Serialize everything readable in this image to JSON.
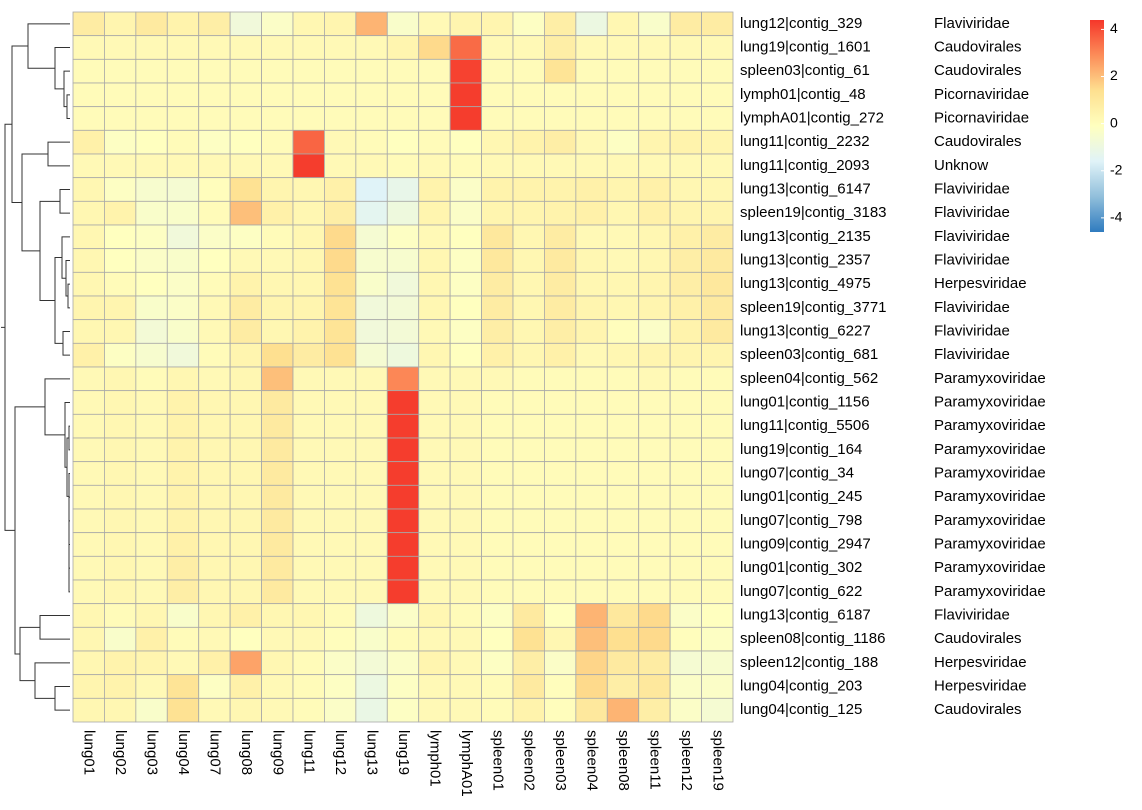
{
  "chart_data": {
    "type": "heatmap",
    "categories": [
      "lung01",
      "lung02",
      "lung03",
      "lung04",
      "lung07",
      "lung08",
      "lung09",
      "lung11",
      "lung12",
      "lung13",
      "lung19",
      "lymph01",
      "lymphA01",
      "spleen01",
      "spleen02",
      "spleen03",
      "spleen04",
      "spleen08",
      "spleen11",
      "spleen12",
      "spleen19"
    ],
    "rows": [
      "lung12|contig_329",
      "lung19|contig_1601",
      "spleen03|contig_61",
      "lymph01|contig_48",
      "lymphA01|contig_272",
      "lung11|contig_2232",
      "lung11|contig_2093",
      "lung13|contig_6147",
      "spleen19|contig_3183",
      "lung13|contig_2135",
      "lung13|contig_2357",
      "lung13|contig_4975",
      "spleen19|contig_3771",
      "lung13|contig_6227",
      "spleen03|contig_681",
      "spleen04|contig_562",
      "lung01|contig_1156",
      "lung11|contig_5506",
      "lung19|contig_164",
      "lung07|contig_34",
      "lung01|contig_245",
      "lung07|contig_798",
      "lung09|contig_2947",
      "lung01|contig_302",
      "lung07|contig_622",
      "lung13|contig_6187",
      "spleen08|contig_1186",
      "spleen12|contig_188",
      "lung04|contig_203",
      "lung04|contig_125"
    ],
    "row_annotations": [
      "Flaviviridae",
      "Caudovirales",
      "Caudovirales",
      "Picornaviridae",
      "Picornaviridae",
      "Caudovirales",
      "Unknow",
      "Flaviviridae",
      "Flaviviridae",
      "Flaviviridae",
      "Flaviviridae",
      "Herpesviridae",
      "Flaviviridae",
      "Flaviviridae",
      "Flaviviridae",
      "Paramyxoviridae",
      "Paramyxoviridae",
      "Paramyxoviridae",
      "Paramyxoviridae",
      "Paramyxoviridae",
      "Paramyxoviridae",
      "Paramyxoviridae",
      "Paramyxoviridae",
      "Paramyxoviridae",
      "Paramyxoviridae",
      "Flaviviridae",
      "Caudovirales",
      "Herpesviridae",
      "Herpesviridae",
      "Caudovirales"
    ],
    "values": [
      [
        0.8,
        0.4,
        0.9,
        0.5,
        0.7,
        -0.8,
        -0.3,
        0.3,
        0.4,
        2.2,
        -0.4,
        0.2,
        0.4,
        0.4,
        -0.2,
        0.7,
        -1.0,
        0.3,
        -0.4,
        0.8,
        0.8
      ],
      [
        0.2,
        0.2,
        0.2,
        0.2,
        0.2,
        0.2,
        0.2,
        0.2,
        0.2,
        0.2,
        0.4,
        1.5,
        3.5,
        0.2,
        0.2,
        0.7,
        0.2,
        0.2,
        0.2,
        0.2,
        0.2
      ],
      [
        0.1,
        0.1,
        0.1,
        0.1,
        0.1,
        0.1,
        0.1,
        0.1,
        0.1,
        0.1,
        0.1,
        0.1,
        4.2,
        0.1,
        0.1,
        1.2,
        0.1,
        0.1,
        0.1,
        0.1,
        0.1
      ],
      [
        0.1,
        0.1,
        0.1,
        0.1,
        0.1,
        0.1,
        0.1,
        0.1,
        0.1,
        0.1,
        0.1,
        0.1,
        4.3,
        0.1,
        0.1,
        0.1,
        0.1,
        0.1,
        0.1,
        0.1,
        0.1
      ],
      [
        0.1,
        0.1,
        0.1,
        0.1,
        0.1,
        0.1,
        0.1,
        0.1,
        0.1,
        0.1,
        0.1,
        0.1,
        4.3,
        0.1,
        0.1,
        0.1,
        0.1,
        0.1,
        0.1,
        0.1,
        0.1
      ],
      [
        0.6,
        -0.2,
        -0.1,
        0.1,
        -0.2,
        -0.1,
        0.1,
        3.6,
        0.2,
        0.1,
        -0.1,
        0.1,
        -0.1,
        0.3,
        0.5,
        0.7,
        0.2,
        -0.2,
        0.4,
        0.5,
        0.4
      ],
      [
        0.2,
        0.2,
        0.2,
        0.2,
        0.2,
        0.2,
        0.2,
        4.3,
        0.2,
        0.2,
        0.1,
        0.2,
        0.1,
        0.2,
        0.2,
        0.2,
        0.2,
        0.2,
        0.2,
        0.2,
        0.2
      ],
      [
        0.3,
        -0.2,
        -0.5,
        -0.6,
        0.0,
        1.3,
        0.4,
        0.3,
        0.6,
        -1.6,
        -1.2,
        0.5,
        -0.3,
        0.5,
        0.5,
        0.5,
        0.6,
        0.4,
        0.6,
        0.3,
        0.3
      ],
      [
        0.3,
        0.5,
        -0.4,
        -0.4,
        0.1,
        2.0,
        0.6,
        0.3,
        0.7,
        -1.4,
        -0.9,
        0.4,
        -0.3,
        0.4,
        0.4,
        0.5,
        0.6,
        0.3,
        0.6,
        0.4,
        0.4
      ],
      [
        0.3,
        -0.1,
        -0.2,
        -0.8,
        -0.3,
        -0.2,
        0.1,
        0.3,
        1.5,
        -0.6,
        -0.2,
        0.2,
        -0.1,
        1.0,
        0.3,
        0.8,
        0.2,
        0.2,
        0.3,
        0.6,
        0.8
      ],
      [
        0.3,
        -0.1,
        -0.3,
        -0.4,
        -0.1,
        0.2,
        0.2,
        0.3,
        1.5,
        -0.5,
        -0.5,
        0.3,
        -0.2,
        1.0,
        0.3,
        0.9,
        0.3,
        0.2,
        0.3,
        0.7,
        0.9
      ],
      [
        0.3,
        0.1,
        -0.1,
        -0.3,
        0.1,
        0.5,
        0.3,
        0.3,
        1.3,
        -0.4,
        -0.8,
        0.3,
        -0.2,
        0.8,
        0.3,
        0.8,
        0.3,
        0.3,
        0.4,
        0.7,
        1.0
      ],
      [
        0.4,
        0.4,
        -0.4,
        -0.3,
        0.2,
        0.8,
        0.4,
        0.4,
        1.2,
        -0.8,
        -0.7,
        0.3,
        -0.1,
        0.8,
        0.3,
        0.8,
        0.4,
        0.3,
        0.4,
        0.6,
        0.9
      ],
      [
        0.3,
        0.3,
        -0.7,
        -0.4,
        0.2,
        0.8,
        0.3,
        0.5,
        1.2,
        -0.8,
        -0.7,
        0.2,
        -0.2,
        0.7,
        0.3,
        0.7,
        0.4,
        0.0,
        -0.3,
        0.5,
        0.9
      ],
      [
        0.6,
        -0.2,
        -0.5,
        -0.8,
        0.1,
        0.4,
        1.4,
        0.8,
        1.3,
        -0.6,
        -0.9,
        0.3,
        -0.1,
        0.6,
        0.3,
        0.6,
        0.2,
        0.3,
        0.4,
        0.4,
        0.4
      ],
      [
        0.2,
        0.3,
        0.1,
        0.3,
        0.2,
        0.3,
        2.0,
        0.2,
        0.2,
        0.2,
        3.0,
        0.2,
        0.2,
        0.2,
        0.1,
        0.1,
        0.1,
        0.1,
        0.2,
        0.1,
        0.1
      ],
      [
        0.2,
        0.3,
        0.2,
        0.5,
        0.3,
        0.3,
        0.9,
        0.2,
        0.2,
        0.2,
        4.3,
        0.2,
        0.2,
        0.1,
        0.1,
        0.1,
        0.1,
        0.1,
        0.1,
        0.1,
        0.1
      ],
      [
        0.2,
        0.3,
        0.2,
        0.5,
        0.3,
        0.3,
        0.9,
        0.2,
        0.2,
        0.2,
        4.3,
        0.2,
        0.2,
        0.1,
        0.1,
        0.1,
        0.1,
        0.1,
        0.1,
        0.1,
        0.1
      ],
      [
        0.2,
        0.3,
        0.2,
        0.5,
        0.3,
        0.3,
        0.9,
        0.2,
        0.2,
        0.2,
        4.3,
        0.2,
        0.2,
        0.1,
        0.1,
        0.1,
        0.1,
        0.1,
        0.1,
        0.1,
        0.1
      ],
      [
        0.2,
        0.3,
        0.2,
        0.5,
        0.3,
        0.3,
        0.9,
        0.2,
        0.2,
        0.2,
        4.3,
        0.2,
        0.2,
        0.1,
        0.1,
        0.1,
        0.1,
        0.1,
        0.1,
        0.1,
        0.1
      ],
      [
        0.2,
        0.3,
        0.2,
        0.5,
        0.3,
        0.3,
        0.9,
        0.2,
        0.2,
        0.2,
        4.3,
        0.2,
        0.2,
        0.1,
        0.1,
        0.1,
        0.1,
        0.1,
        0.1,
        0.1,
        0.1
      ],
      [
        0.2,
        0.3,
        0.2,
        0.5,
        0.3,
        0.3,
        0.9,
        0.2,
        0.2,
        0.2,
        4.3,
        0.2,
        0.2,
        0.1,
        0.1,
        0.1,
        0.1,
        0.1,
        0.1,
        0.1,
        0.1
      ],
      [
        0.2,
        0.3,
        0.2,
        0.6,
        0.3,
        0.3,
        0.9,
        0.2,
        0.2,
        0.2,
        4.3,
        0.2,
        0.2,
        0.1,
        0.1,
        0.1,
        0.1,
        0.1,
        0.1,
        0.1,
        0.1
      ],
      [
        0.2,
        0.3,
        0.2,
        0.7,
        0.3,
        0.3,
        0.9,
        0.2,
        0.2,
        0.2,
        4.3,
        0.2,
        0.2,
        0.1,
        0.1,
        0.1,
        0.1,
        0.1,
        0.1,
        0.1,
        0.1
      ],
      [
        0.2,
        0.3,
        0.2,
        0.7,
        0.3,
        0.3,
        0.9,
        0.2,
        0.2,
        0.2,
        4.3,
        0.2,
        0.2,
        0.1,
        0.1,
        0.1,
        0.1,
        0.1,
        0.1,
        0.1,
        0.1
      ],
      [
        0.3,
        0.1,
        0.3,
        -0.4,
        0.3,
        0.6,
        0.3,
        0.3,
        0.1,
        -0.9,
        -0.3,
        0.3,
        0.1,
        -0.2,
        0.9,
        -0.1,
        2.2,
        1.0,
        1.5,
        -0.3,
        -0.1
      ],
      [
        0.3,
        -0.4,
        0.6,
        0.1,
        0.2,
        -0.1,
        0.2,
        0.2,
        0.0,
        -0.4,
        0.1,
        0.2,
        0.2,
        -0.1,
        1.3,
        0.3,
        2.0,
        1.4,
        1.5,
        0.0,
        -0.2
      ],
      [
        0.3,
        0.5,
        0.4,
        0.2,
        0.6,
        2.5,
        0.3,
        0.1,
        -0.3,
        -0.7,
        -0.3,
        0.4,
        0.2,
        -0.2,
        0.7,
        -0.3,
        1.6,
        0.9,
        0.8,
        -0.6,
        -0.5
      ],
      [
        0.4,
        0.5,
        0.2,
        1.2,
        -0.2,
        0.6,
        0.2,
        0.1,
        -0.2,
        -1.0,
        -0.2,
        0.2,
        0.2,
        0.1,
        0.9,
        0.0,
        1.5,
        0.7,
        1.0,
        -0.3,
        -0.3
      ],
      [
        0.3,
        0.3,
        -0.4,
        1.3,
        0.2,
        0.3,
        0.2,
        0.1,
        -0.3,
        -1.1,
        -0.2,
        0.2,
        0.2,
        0.1,
        0.5,
        0.0,
        1.0,
        2.2,
        0.7,
        -0.3,
        -0.6
      ]
    ],
    "zlim": [
      -4.6,
      4.4
    ],
    "colorbar_ticks": [
      -4,
      -2,
      0,
      2,
      4
    ],
    "colors": [
      "#2f7bbf",
      "#91bfdb",
      "#e0f3f8",
      "#ffffbf",
      "#fee090",
      "#fc8d59",
      "#f5372a"
    ]
  }
}
